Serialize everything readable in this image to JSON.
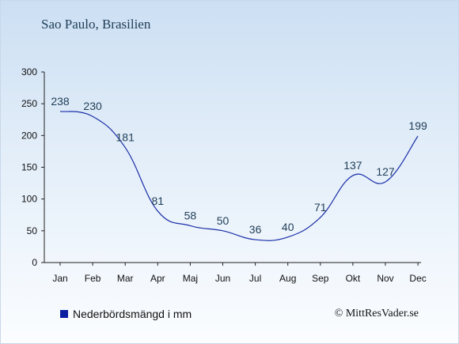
{
  "title": "Sao Paulo, Brasilien",
  "legend_label": "Nederbördsmängd i mm",
  "copyright": "© MittResVader.se",
  "colors": {
    "line": "#1b2fa8",
    "swatch": "#0a1fa0",
    "axis": "#222222",
    "text": "#1f3d57"
  },
  "chart_data": {
    "type": "line",
    "categories": [
      "Jan",
      "Feb",
      "Mar",
      "Apr",
      "Maj",
      "Jun",
      "Jul",
      "Aug",
      "Sep",
      "Okt",
      "Nov",
      "Dec"
    ],
    "series": [
      {
        "name": "Nederbördsmängd i mm",
        "values": [
          238,
          230,
          181,
          81,
          58,
          50,
          36,
          40,
          71,
          137,
          127,
          199
        ]
      }
    ],
    "ylim": [
      0,
      300
    ],
    "yticks": [
      0,
      50,
      100,
      150,
      200,
      250,
      300
    ],
    "data_labels": true,
    "grid": false,
    "legend_position": "bottom-left"
  }
}
